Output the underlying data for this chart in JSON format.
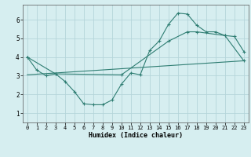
{
  "xlabel": "Humidex (Indice chaleur)",
  "background_color": "#d6eef0",
  "grid_color": "#b5d5da",
  "line_color": "#2e7d72",
  "xlim": [
    -0.5,
    23.5
  ],
  "ylim": [
    0.5,
    6.8
  ],
  "xticks": [
    0,
    1,
    2,
    3,
    4,
    5,
    6,
    7,
    8,
    9,
    10,
    11,
    12,
    13,
    14,
    15,
    16,
    17,
    18,
    19,
    20,
    21,
    22,
    23
  ],
  "yticks": [
    1,
    2,
    3,
    4,
    5,
    6
  ],
  "line1_x": [
    0,
    1,
    2,
    3,
    4,
    5,
    6,
    7,
    8,
    9,
    10,
    11,
    12,
    13,
    14,
    15,
    16,
    17,
    18,
    19,
    20,
    21,
    22,
    23
  ],
  "line1_y": [
    4.0,
    3.3,
    3.0,
    3.1,
    2.7,
    2.15,
    1.5,
    1.45,
    1.45,
    1.7,
    2.55,
    3.15,
    3.05,
    4.35,
    4.85,
    5.75,
    6.35,
    6.3,
    5.7,
    5.35,
    5.35,
    5.15,
    5.1,
    4.3
  ],
  "line2_x": [
    0,
    3,
    10,
    15,
    17,
    18,
    21,
    23
  ],
  "line2_y": [
    4.0,
    3.1,
    3.05,
    4.85,
    5.35,
    5.35,
    5.15,
    3.8
  ],
  "line3_x": [
    0,
    23
  ],
  "line3_y": [
    3.05,
    3.8
  ]
}
